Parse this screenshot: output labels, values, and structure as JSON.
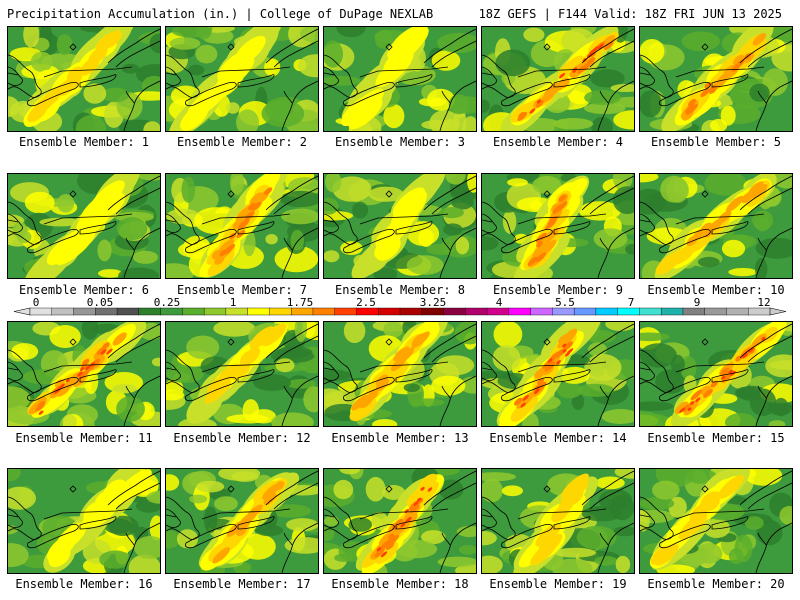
{
  "header": {
    "left": "Precipitation Accumulation (in.) | College of DuPage NEXLAB",
    "right": "18Z GEFS | F144 Valid: 18Z FRI JUN 13 2025"
  },
  "members": [
    {
      "label": "Ensemble Member: 1",
      "intensity": 0.45
    },
    {
      "label": "Ensemble Member: 2",
      "intensity": 0.3
    },
    {
      "label": "Ensemble Member: 3",
      "intensity": 0.25
    },
    {
      "label": "Ensemble Member: 4",
      "intensity": 0.9
    },
    {
      "label": "Ensemble Member: 5",
      "intensity": 0.7
    },
    {
      "label": "Ensemble Member: 6",
      "intensity": 0.3
    },
    {
      "label": "Ensemble Member: 7",
      "intensity": 0.75
    },
    {
      "label": "Ensemble Member: 8",
      "intensity": 0.2
    },
    {
      "label": "Ensemble Member: 9",
      "intensity": 0.7
    },
    {
      "label": "Ensemble Member: 10",
      "intensity": 0.6
    },
    {
      "label": "Ensemble Member: 11",
      "intensity": 0.85
    },
    {
      "label": "Ensemble Member: 12",
      "intensity": 0.5
    },
    {
      "label": "Ensemble Member: 13",
      "intensity": 0.6
    },
    {
      "label": "Ensemble Member: 14",
      "intensity": 0.9
    },
    {
      "label": "Ensemble Member: 15",
      "intensity": 0.95
    },
    {
      "label": "Ensemble Member: 16",
      "intensity": 0.3
    },
    {
      "label": "Ensemble Member: 17",
      "intensity": 0.55
    },
    {
      "label": "Ensemble Member: 18",
      "intensity": 0.85
    },
    {
      "label": "Ensemble Member: 19",
      "intensity": 0.5
    },
    {
      "label": "Ensemble Member: 20",
      "intensity": 0.45
    }
  ],
  "legend": {
    "tick_labels": [
      "0",
      "0.05",
      "0.25",
      "1",
      "1.75",
      "2.5",
      "3.25",
      "4",
      "5.5",
      "7",
      "9",
      "12"
    ],
    "colors": [
      "#e0e0e0",
      "#c0c0c0",
      "#969696",
      "#707070",
      "#505050",
      "#2d7f2d",
      "#3d9a3d",
      "#5aae2d",
      "#8ec82d",
      "#c8e029",
      "#ffff00",
      "#ffd700",
      "#ffa500",
      "#ff8000",
      "#ff4000",
      "#ff0000",
      "#d40000",
      "#aa0000",
      "#800000",
      "#8b0040",
      "#b0006a",
      "#d0008c",
      "#ff00ff",
      "#cc66ff",
      "#9999ff",
      "#6699ff",
      "#00ccff",
      "#00ffff",
      "#40e0d0",
      "#20b2aa",
      "#808080",
      "#999999",
      "#b0b0b0",
      "#cccccc"
    ]
  }
}
